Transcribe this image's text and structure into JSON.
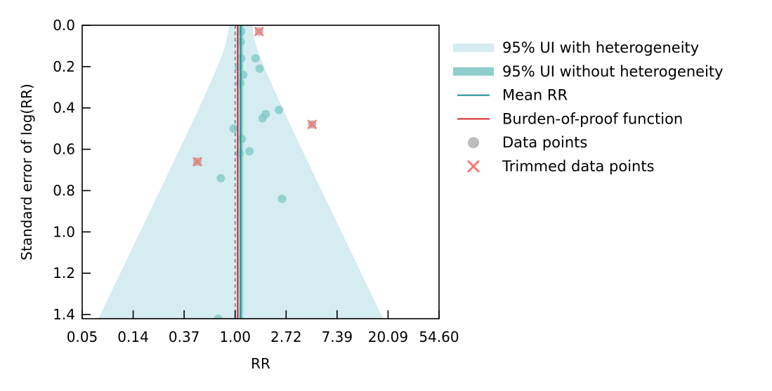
{
  "chart_data": {
    "type": "scatter",
    "title": "",
    "xlabel": "RR",
    "ylabel": "Standard error of log(RR)",
    "x_scale": "log",
    "xlim_log": [
      -3.0,
      4.0
    ],
    "ylim": [
      0.0,
      1.42
    ],
    "y_inverted": true,
    "grid": false,
    "x_ticks": [
      {
        "log": -3,
        "label": "0.05"
      },
      {
        "log": -2,
        "label": "0.14"
      },
      {
        "log": -1,
        "label": "0.37"
      },
      {
        "log": 0,
        "label": "1.00"
      },
      {
        "log": 1,
        "label": "2.72"
      },
      {
        "log": 2,
        "label": "7.39"
      },
      {
        "log": 3,
        "label": "20.09"
      },
      {
        "log": 4,
        "label": "54.60"
      }
    ],
    "y_ticks": [
      {
        "value": 0.0,
        "label": "0.0"
      },
      {
        "value": 0.2,
        "label": "0.2"
      },
      {
        "value": 0.4,
        "label": "0.4"
      },
      {
        "value": 0.6,
        "label": "0.6"
      },
      {
        "value": 0.8,
        "label": "0.8"
      },
      {
        "value": 1.0,
        "label": "1.0"
      },
      {
        "value": 1.2,
        "label": "1.2"
      },
      {
        "value": 1.4,
        "label": "1.4"
      }
    ],
    "mean_log_rr": 0.11,
    "burden_of_proof_log_rr": 0.05,
    "reference_log_rr": 0.0,
    "ui_with_heterogeneity": {
      "apex_log_rr": 0.11,
      "half_width_per_se": 1.96,
      "heterogeneity_sd": 0.12
    },
    "ui_without_heterogeneity": {
      "lower_log_rr": 0.06,
      "upper_log_rr": 0.16
    },
    "data_points": [
      {
        "log_rr": 0.12,
        "se": 0.03
      },
      {
        "log_rr": 0.11,
        "se": 0.08
      },
      {
        "log_rr": 0.12,
        "se": 0.16
      },
      {
        "log_rr": 0.07,
        "se": 0.2
      },
      {
        "log_rr": 0.16,
        "se": 0.24
      },
      {
        "log_rr": 0.1,
        "se": 0.28
      },
      {
        "log_rr": 0.4,
        "se": 0.16
      },
      {
        "log_rr": 0.48,
        "se": 0.21
      },
      {
        "log_rr": 0.86,
        "se": 0.41
      },
      {
        "log_rr": 0.6,
        "se": 0.43
      },
      {
        "log_rr": 0.54,
        "se": 0.45
      },
      {
        "log_rr": -0.03,
        "se": 0.5
      },
      {
        "log_rr": 0.13,
        "se": 0.55
      },
      {
        "log_rr": 0.28,
        "se": 0.61
      },
      {
        "log_rr": 0.09,
        "se": 0.62
      },
      {
        "log_rr": -0.28,
        "se": 0.74
      },
      {
        "log_rr": 0.92,
        "se": 0.84
      },
      {
        "log_rr": -0.33,
        "se": 1.42
      }
    ],
    "trimmed_points": [
      {
        "log_rr": 0.47,
        "se": 0.03
      },
      {
        "log_rr": 1.51,
        "se": 0.48
      },
      {
        "log_rr": -0.74,
        "se": 0.66
      }
    ],
    "legend": {
      "position": "upper-right-outside",
      "entries": [
        {
          "label": "95% UI with heterogeneity",
          "marker": "band-light"
        },
        {
          "label": "95% UI without heterogeneity",
          "marker": "band-dark"
        },
        {
          "label": "Mean RR",
          "marker": "line-teal"
        },
        {
          "label": "Burden-of-proof function",
          "marker": "line-red"
        },
        {
          "label": "Data points",
          "marker": "dot-gray"
        },
        {
          "label": "Trimmed data points",
          "marker": "x-salmon"
        }
      ]
    },
    "colors": {
      "band_light": "#d5ecf0",
      "band_dark": "#8fcccc",
      "mean_line": "#1b8a9a",
      "bop_line": "#d62728",
      "ref_line": "#777777",
      "point_fill": "#7fcac7",
      "legend_point": "#bdbdbd",
      "trim_x": "#f07b72",
      "trim_dot": "#b7a9ad",
      "axis": "#000000"
    }
  }
}
